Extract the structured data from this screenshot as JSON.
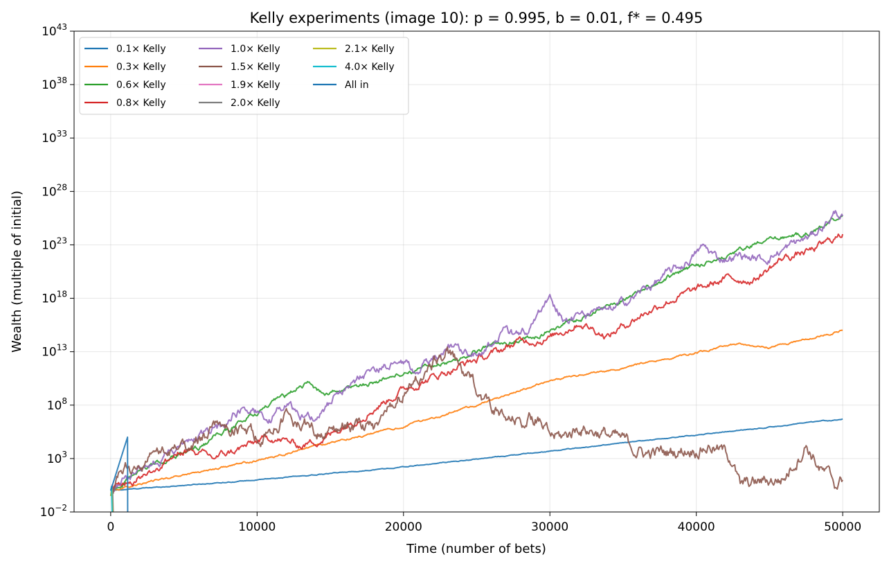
{
  "chart_data": {
    "type": "line",
    "title": "Kelly experiments (image 10): p = 0.995, b = 0.01, f* = 0.495",
    "xlabel": "Time (number of bets)",
    "ylabel": "Wealth (multiple of initial)",
    "xlim": [
      -2500,
      52500
    ],
    "ylim_log10": [
      -2,
      43
    ],
    "yscale": "log",
    "x_ticks": [
      0,
      10000,
      20000,
      30000,
      40000,
      50000
    ],
    "x_tick_labels": [
      "0",
      "10000",
      "20000",
      "30000",
      "40000",
      "50000"
    ],
    "y_ticks_log10": [
      -2,
      3,
      8,
      13,
      18,
      23,
      28,
      33,
      38,
      43
    ],
    "y_tick_labels": [
      {
        "base": "10",
        "exp": "−2"
      },
      {
        "base": "10",
        "exp": "3"
      },
      {
        "base": "10",
        "exp": "8"
      },
      {
        "base": "10",
        "exp": "13"
      },
      {
        "base": "10",
        "exp": "18"
      },
      {
        "base": "10",
        "exp": "23"
      },
      {
        "base": "10",
        "exp": "28"
      },
      {
        "base": "10",
        "exp": "33"
      },
      {
        "base": "10",
        "exp": "38"
      },
      {
        "base": "10",
        "exp": "43"
      }
    ],
    "grid": true,
    "legend_position": "top-left",
    "legend_columns": 3,
    "series": [
      {
        "name": "0.1× Kelly",
        "color": "#1f77b4",
        "vol": 0.05,
        "points": [
          [
            0,
            0
          ],
          [
            5000,
            0.5
          ],
          [
            10000,
            1.0
          ],
          [
            20000,
            2.2
          ],
          [
            30000,
            3.7
          ],
          [
            40000,
            5.2
          ],
          [
            50000,
            6.7
          ]
        ]
      },
      {
        "name": "0.3× Kelly",
        "color": "#ff7f0e",
        "vol": 0.12,
        "points": [
          [
            0,
            0
          ],
          [
            5000,
            1.5
          ],
          [
            10000,
            2.8
          ],
          [
            15000,
            4.5
          ],
          [
            20000,
            6.0
          ],
          [
            25000,
            8.0
          ],
          [
            30000,
            10.3
          ],
          [
            35000,
            11.5
          ],
          [
            40000,
            12.9
          ],
          [
            43000,
            13.8
          ],
          [
            45000,
            13.4
          ],
          [
            50000,
            15.0
          ]
        ]
      },
      {
        "name": "0.6× Kelly",
        "color": "#2ca02c",
        "vol": 0.3,
        "points": [
          [
            0,
            0
          ],
          [
            3000,
            2.5
          ],
          [
            6000,
            4.0
          ],
          [
            9000,
            6.5
          ],
          [
            12000,
            8.8
          ],
          [
            13500,
            10.2
          ],
          [
            14500,
            9.0
          ],
          [
            17000,
            9.8
          ],
          [
            20000,
            11.0
          ],
          [
            23000,
            12.0
          ],
          [
            26000,
            13.5
          ],
          [
            29000,
            14.5
          ],
          [
            32000,
            16.0
          ],
          [
            35000,
            18.0
          ],
          [
            38000,
            20.0
          ],
          [
            40000,
            21.0
          ],
          [
            44000,
            23.0
          ],
          [
            48000,
            24.3
          ],
          [
            50000,
            25.8
          ]
        ]
      },
      {
        "name": "0.8× Kelly",
        "color": "#d62728",
        "vol": 0.45,
        "points": [
          [
            0,
            0
          ],
          [
            3000,
            2.0
          ],
          [
            5000,
            3.8
          ],
          [
            7000,
            3.0
          ],
          [
            9000,
            4.0
          ],
          [
            11000,
            5.0
          ],
          [
            13000,
            4.2
          ],
          [
            15000,
            5.2
          ],
          [
            17000,
            7.0
          ],
          [
            18500,
            8.2
          ],
          [
            20000,
            9.5
          ],
          [
            22000,
            10.6
          ],
          [
            24000,
            11.8
          ],
          [
            26000,
            12.7
          ],
          [
            28000,
            14.0
          ],
          [
            30000,
            14.3
          ],
          [
            32000,
            15.8
          ],
          [
            34000,
            14.5
          ],
          [
            36000,
            16.3
          ],
          [
            38000,
            17.8
          ],
          [
            40000,
            18.7
          ],
          [
            42000,
            19.8
          ],
          [
            44000,
            19.8
          ],
          [
            46000,
            21.8
          ],
          [
            48000,
            22.5
          ],
          [
            50000,
            24.0
          ]
        ]
      },
      {
        "name": "1.0× Kelly",
        "color": "#9467bd",
        "vol": 0.55,
        "points": [
          [
            0,
            0
          ],
          [
            2000,
            2.0
          ],
          [
            4000,
            3.5
          ],
          [
            6000,
            5.0
          ],
          [
            7500,
            5.8
          ],
          [
            9000,
            8.0
          ],
          [
            10000,
            7.3
          ],
          [
            11000,
            6.8
          ],
          [
            12000,
            8.2
          ],
          [
            13000,
            7.2
          ],
          [
            14000,
            7.0
          ],
          [
            16000,
            9.5
          ],
          [
            18000,
            11.5
          ],
          [
            20000,
            11.8
          ],
          [
            21000,
            11.0
          ],
          [
            23000,
            13.5
          ],
          [
            25000,
            13.0
          ],
          [
            27000,
            14.8
          ],
          [
            28000,
            14.2
          ],
          [
            30000,
            17.8
          ],
          [
            31000,
            16.2
          ],
          [
            32500,
            16.3
          ],
          [
            34000,
            16.6
          ],
          [
            35000,
            17.5
          ],
          [
            37000,
            19.3
          ],
          [
            39000,
            21.0
          ],
          [
            40500,
            22.8
          ],
          [
            41500,
            21.7
          ],
          [
            43000,
            22.0
          ],
          [
            44500,
            21.6
          ],
          [
            46000,
            22.6
          ],
          [
            48000,
            23.9
          ],
          [
            49500,
            26.0
          ],
          [
            50000,
            25.7
          ]
        ]
      },
      {
        "name": "1.5× Kelly",
        "color": "#8c564b",
        "vol": 0.85,
        "points": [
          [
            0,
            -0.5
          ],
          [
            1000,
            1.8
          ],
          [
            2500,
            2.5
          ],
          [
            4000,
            3.5
          ],
          [
            6000,
            5.0
          ],
          [
            8000,
            6.0
          ],
          [
            10000,
            5.0
          ],
          [
            12000,
            6.8
          ],
          [
            13000,
            6.5
          ],
          [
            14500,
            5.5
          ],
          [
            16000,
            6.3
          ],
          [
            18000,
            5.8
          ],
          [
            19500,
            8.5
          ],
          [
            21000,
            10.5
          ],
          [
            23000,
            13.0
          ],
          [
            24000,
            11.0
          ],
          [
            26000,
            8.0
          ],
          [
            27000,
            6.3
          ],
          [
            29000,
            6.8
          ],
          [
            30000,
            5.0
          ],
          [
            31000,
            5.0
          ],
          [
            32000,
            6.0
          ],
          [
            33500,
            5.5
          ],
          [
            35000,
            4.5
          ],
          [
            36500,
            3.5
          ],
          [
            38000,
            3.5
          ],
          [
            39500,
            4.0
          ],
          [
            41000,
            4.3
          ],
          [
            42500,
            3.0
          ],
          [
            43000,
            0.3
          ],
          [
            44500,
            0.8
          ],
          [
            46000,
            1.2
          ],
          [
            47500,
            4.5
          ],
          [
            48500,
            2.0
          ],
          [
            49500,
            0.5
          ],
          [
            50000,
            1.0
          ]
        ]
      },
      {
        "name": "1.9× Kelly",
        "color": "#e377c2",
        "vol": 0.3,
        "points": [
          [
            0,
            -0.5
          ],
          [
            100,
            0.5
          ],
          [
            150,
            -2
          ]
        ]
      },
      {
        "name": "2.0× Kelly",
        "color": "#7f7f7f",
        "vol": 0.3,
        "points": [
          [
            0,
            -0.5
          ],
          [
            120,
            0.3
          ],
          [
            170,
            -2
          ]
        ]
      },
      {
        "name": "2.1× Kelly",
        "color": "#bcbd22",
        "vol": 0.3,
        "points": [
          [
            0,
            -0.5
          ],
          [
            80,
            0.2
          ],
          [
            130,
            -2
          ]
        ]
      },
      {
        "name": "4.0× Kelly",
        "color": "#17becf",
        "vol": 0.3,
        "points": [
          [
            0,
            0
          ],
          [
            60,
            0.4
          ],
          [
            100,
            -2
          ]
        ]
      },
      {
        "name": "All in",
        "color": "#1f77b4",
        "vol": 0,
        "points": [
          [
            0,
            0
          ],
          [
            1150,
            5.0
          ],
          [
            1160,
            -2
          ]
        ]
      }
    ]
  }
}
